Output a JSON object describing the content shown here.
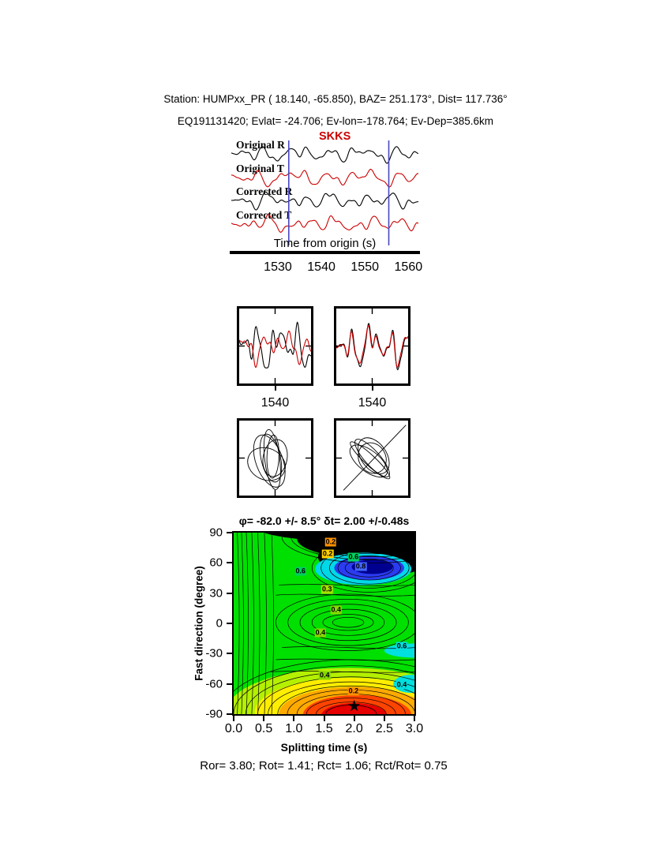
{
  "header": {
    "line1": "Station: HUMPxx_PR (  18.140,  -65.850), BAZ=  251.173°, Dist=  117.736°",
    "line2": "EQ191131420; Evlat= -24.706; Ev-lon=-178.764; Ev-Dep=385.6km"
  },
  "footer": "Ror= 3.80; Rot= 1.41; Rct= 1.06; Rct/Rot= 0.75",
  "chart_data": [
    {
      "type": "line",
      "id": "waveform-traces",
      "phase_label": "SKKS",
      "phase_color": "#cc0000",
      "x_axis": {
        "label": "Time from origin (s)",
        "ticks": [
          1530,
          1540,
          1550,
          1560
        ],
        "range": [
          1519.3,
          1562.3
        ]
      },
      "window": {
        "start": 1532.5,
        "end": 1555.5,
        "color": "#4848c0"
      },
      "traces": [
        {
          "label": "Original R",
          "color": "#000000",
          "harmonics": [
            [
              3.2,
              0.45,
              0.4
            ],
            [
              5.5,
              0.7,
              2.2
            ],
            [
              8.5,
              0.9,
              4.6
            ],
            [
              12.5,
              0.55,
              1.4
            ],
            [
              17,
              0.35,
              3.2
            ],
            [
              24,
              0.18,
              5.5
            ]
          ]
        },
        {
          "label": "Original T",
          "color": "#cc0000",
          "harmonics": [
            [
              2.8,
              0.5,
              1.9
            ],
            [
              5.0,
              0.65,
              4.0
            ],
            [
              8.0,
              0.85,
              0.8
            ],
            [
              12.0,
              0.5,
              2.9
            ],
            [
              16.5,
              0.3,
              5.2
            ],
            [
              23,
              0.15,
              1.0
            ]
          ]
        },
        {
          "label": "Corrected R",
          "color": "#000000",
          "harmonics": [
            [
              3.5,
              0.5,
              2.8
            ],
            [
              6.0,
              0.75,
              0.3
            ],
            [
              9.0,
              0.85,
              3.5
            ],
            [
              13.0,
              0.5,
              5.8
            ],
            [
              18,
              0.3,
              1.7
            ],
            [
              25,
              0.15,
              4.1
            ]
          ]
        },
        {
          "label": "Corrected T",
          "color": "#cc0000",
          "harmonics": [
            [
              3.0,
              0.45,
              5.0
            ],
            [
              5.5,
              0.7,
              1.1
            ],
            [
              8.8,
              0.8,
              2.6
            ],
            [
              12.5,
              0.5,
              4.4
            ],
            [
              17.5,
              0.32,
              0.2
            ],
            [
              24,
              0.16,
              3.0
            ]
          ]
        }
      ]
    },
    {
      "type": "line",
      "id": "window-original",
      "x_tick": "1540",
      "series": [
        {
          "color": "#000000",
          "harmonics": [
            [
              1.8,
              0.6,
              0.7
            ],
            [
              3.5,
              0.9,
              2.5
            ],
            [
              5.5,
              0.7,
              4.9
            ],
            [
              8.5,
              0.45,
              1.8
            ],
            [
              12,
              0.25,
              3.9
            ]
          ]
        },
        {
          "color": "#cc0000",
          "harmonics": [
            [
              1.6,
              0.55,
              2.3
            ],
            [
              3.2,
              0.85,
              0.4
            ],
            [
              5.2,
              0.75,
              3.1
            ],
            [
              8.0,
              0.5,
              5.3
            ],
            [
              11.5,
              0.28,
              1.3
            ]
          ]
        }
      ]
    },
    {
      "type": "line",
      "id": "window-corrected",
      "x_tick": "1540",
      "series": [
        {
          "color": "#000000",
          "harmonics": [
            [
              1.9,
              0.6,
              1.5
            ],
            [
              3.6,
              0.9,
              3.3
            ],
            [
              5.6,
              0.7,
              5.7
            ],
            [
              8.6,
              0.45,
              2.6
            ],
            [
              12,
              0.25,
              4.7
            ]
          ]
        },
        {
          "color": "#cc0000",
          "harmonics": [
            [
              1.9,
              0.58,
              1.7
            ],
            [
              3.6,
              0.88,
              3.5
            ],
            [
              5.6,
              0.72,
              5.9
            ],
            [
              8.6,
              0.46,
              2.8
            ],
            [
              12,
              0.26,
              4.9
            ]
          ]
        }
      ]
    },
    {
      "type": "scatter",
      "id": "particle-motion-original",
      "ellipses": [
        {
          "cx": 0.44,
          "cy": 0.5,
          "rx": 0.34,
          "ry": 0.13,
          "rot": 78
        },
        {
          "cx": 0.47,
          "cy": 0.48,
          "rx": 0.3,
          "ry": 0.08,
          "rot": 92
        },
        {
          "cx": 0.42,
          "cy": 0.54,
          "rx": 0.38,
          "ry": 0.18,
          "rot": 70
        },
        {
          "cx": 0.5,
          "cy": 0.5,
          "rx": 0.26,
          "ry": 0.16,
          "rot": 100
        },
        {
          "cx": 0.38,
          "cy": 0.58,
          "rx": 0.27,
          "ry": 0.21,
          "rot": 25
        },
        {
          "cx": 0.46,
          "cy": 0.52,
          "rx": 0.42,
          "ry": 0.1,
          "rot": 83
        }
      ],
      "line": null
    },
    {
      "type": "scatter",
      "id": "particle-motion-corrected",
      "ellipses": [
        {
          "cx": 0.5,
          "cy": 0.5,
          "rx": 0.34,
          "ry": 0.1,
          "rot": 48
        },
        {
          "cx": 0.52,
          "cy": 0.47,
          "rx": 0.28,
          "ry": 0.17,
          "rot": 55
        },
        {
          "cx": 0.47,
          "cy": 0.53,
          "rx": 0.37,
          "ry": 0.07,
          "rot": 43
        },
        {
          "cx": 0.5,
          "cy": 0.5,
          "rx": 0.22,
          "ry": 0.18,
          "rot": 62
        },
        {
          "cx": 0.45,
          "cy": 0.54,
          "rx": 0.31,
          "ry": 0.14,
          "rot": 38
        }
      ],
      "line": {
        "x1": 0.1,
        "y1": 0.93,
        "x2": 0.97,
        "y2": 0.06
      }
    },
    {
      "type": "heatmap",
      "id": "splitting-misfit-map",
      "title": "φ= -82.0 +/- 8.5° δt= 2.00 +/-0.48s",
      "xlabel": "Splitting time (s)",
      "ylabel": "Fast direction (degree)",
      "xticks": [
        "0.0",
        "0.5",
        "1.0",
        "1.5",
        "2.0",
        "2.5",
        "3.0"
      ],
      "yticks": [
        90,
        60,
        30,
        0,
        -30,
        -60,
        -90
      ],
      "xrange": [
        0,
        3
      ],
      "yrange": [
        -90,
        90
      ],
      "best": {
        "phi": -82.0,
        "phi_err": 8.5,
        "dt": 2.0,
        "dt_err": 0.48
      },
      "star": {
        "dt": 2.0,
        "phi": -82
      },
      "base_color": "#00e000",
      "regions": [
        {
          "t": 2.05,
          "d": 95,
          "rt": 1.65,
          "rd": 14,
          "c": "#000000"
        },
        {
          "t": 2.3,
          "d": 84,
          "rt": 1.25,
          "rd": 20,
          "c": "#000000"
        },
        {
          "t": 2.35,
          "d": 66,
          "rt": 0.95,
          "rd": 20,
          "c": "#000000"
        },
        {
          "t": 2.15,
          "d": 54,
          "rt": 0.8,
          "rd": 16,
          "c": "#00d8e8"
        },
        {
          "t": 2.25,
          "d": 55,
          "rt": 0.58,
          "rd": 12,
          "c": "#2b3cf0"
        },
        {
          "t": 2.3,
          "d": 56,
          "rt": 0.34,
          "rd": 7,
          "c": "#000090"
        },
        {
          "t": 3.0,
          "d": -27,
          "rt": 0.5,
          "rd": 7,
          "c": "#00e0e0"
        },
        {
          "t": 1.9,
          "d": -86,
          "rt": 2.0,
          "rd": 42,
          "c": "#b4f000"
        },
        {
          "t": 1.95,
          "d": -88,
          "rt": 1.6,
          "rd": 34,
          "c": "#ffee00"
        },
        {
          "t": 2.0,
          "d": -90,
          "rt": 1.25,
          "rd": 27,
          "c": "#ffaa00"
        },
        {
          "t": 2.05,
          "d": -91,
          "rt": 0.9,
          "rd": 20,
          "c": "#ff4400"
        },
        {
          "t": 2.0,
          "d": -92,
          "rt": 0.55,
          "rd": 13,
          "c": "#e60000"
        },
        {
          "t": 2.95,
          "d": -60,
          "rt": 0.3,
          "rd": 9,
          "c": "#00e0e0"
        }
      ],
      "contour_families": [
        {
          "t": 1.95,
          "d": -90,
          "rings": [
            [
              2.15,
              54
            ],
            [
              1.95,
              48
            ],
            [
              1.75,
              42
            ],
            [
              1.55,
              37
            ],
            [
              1.38,
              32
            ],
            [
              1.22,
              28
            ],
            [
              1.06,
              24
            ],
            [
              0.9,
              20
            ],
            [
              0.74,
              16
            ],
            [
              0.58,
              12
            ],
            [
              0.42,
              9
            ]
          ]
        },
        {
          "t": 2.3,
          "d": 86,
          "rings": [
            [
              1.5,
              26
            ],
            [
              1.35,
              23
            ],
            [
              1.2,
              20
            ],
            [
              1.05,
              17
            ]
          ]
        },
        {
          "t": 2.25,
          "d": 55,
          "rings": [
            [
              0.95,
              24
            ],
            [
              0.8,
              20
            ],
            [
              0.66,
              16
            ],
            [
              0.52,
              12
            ],
            [
              0.4,
              9
            ]
          ]
        },
        {
          "t": 1.9,
          "d": 1,
          "rings": [
            [
              1.2,
              28
            ],
            [
              1.0,
              23
            ],
            [
              0.8,
              18
            ],
            [
              0.6,
              13
            ],
            [
              0.42,
              8
            ],
            [
              0.26,
              5
            ]
          ]
        }
      ],
      "left_lines": [
        0.06,
        0.13,
        0.21,
        0.3,
        0.4,
        0.51,
        0.63
      ],
      "h_lines": [
        {
          "d": 38,
          "t0": 0.75,
          "t1": 3.0,
          "amp": 3
        },
        {
          "d": 28,
          "t0": 0.7,
          "t1": 3.0,
          "amp": 4
        },
        {
          "d": -24,
          "t0": 0.8,
          "t1": 3.0,
          "amp": 4
        },
        {
          "d": -36,
          "t0": 0.7,
          "t1": 3.0,
          "amp": 3
        },
        {
          "d": -48,
          "t0": 0.6,
          "t1": 3.0,
          "amp": 3
        }
      ],
      "labels": [
        {
          "t": 1.61,
          "d": 81,
          "text": "0.2",
          "c": "#ff9100"
        },
        {
          "t": 1.56,
          "d": 69,
          "text": "0.2",
          "c": "#ffd000"
        },
        {
          "t": 1.99,
          "d": 66,
          "text": "0.6",
          "c": "#00d060"
        },
        {
          "t": 2.11,
          "d": 56,
          "text": "0.8",
          "c": "#4466ff"
        },
        {
          "t": 1.11,
          "d": 52,
          "text": "0.6",
          "c": "#00d060"
        },
        {
          "t": 1.55,
          "d": 34,
          "text": "0.3",
          "c": "#a8e000"
        },
        {
          "t": 1.7,
          "d": 13,
          "text": "0.4",
          "c": "#86d800"
        },
        {
          "t": 1.44,
          "d": -9,
          "text": "0.4",
          "c": "#86d800"
        },
        {
          "t": 2.79,
          "d": -23,
          "text": "0.6",
          "c": "#00dddd"
        },
        {
          "t": 1.51,
          "d": -52,
          "text": "0.4",
          "c": "#86d800"
        },
        {
          "t": 1.99,
          "d": -67,
          "text": "0.2",
          "c": "#ff9100"
        },
        {
          "t": 2.79,
          "d": -61,
          "text": "0.4",
          "c": "#00dddd"
        }
      ]
    }
  ]
}
